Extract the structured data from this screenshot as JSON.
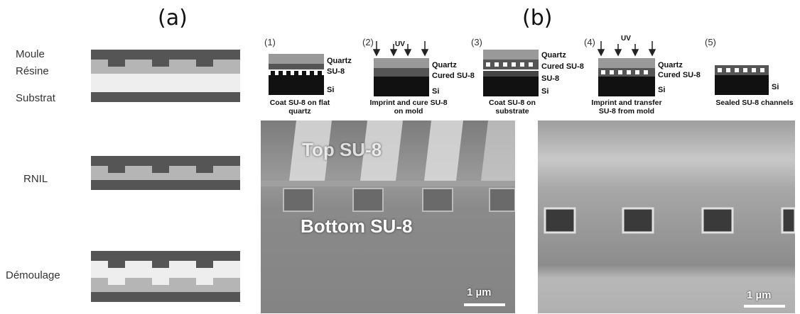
{
  "panel_labels": {
    "a": "(a)",
    "b": "(b)"
  },
  "left_labels": {
    "moule": "Moule",
    "resine": "Résine",
    "substrat": "Substrat",
    "rnil": "RNIL",
    "demoulage": "Démoulage"
  },
  "steps": [
    {
      "num": "(1)",
      "layers": [
        "Quartz",
        "SU-8",
        "Si"
      ],
      "caption": "Coat SU-8 on flat quartz"
    },
    {
      "num": "(2)",
      "uv": "UV",
      "layers": [
        "Quartz",
        "Cured SU-8",
        "Si"
      ],
      "caption": "Imprint and cure SU-8 on mold"
    },
    {
      "num": "(3)",
      "layers": [
        "Quartz",
        "Cured SU-8",
        "SU-8",
        "Si"
      ],
      "caption": "Coat SU-8 on substrate"
    },
    {
      "num": "(4)",
      "uv": "UV",
      "layers": [
        "Quartz",
        "Cured SU-8",
        "Si"
      ],
      "caption": "Imprint and transfer SU-8 from mold"
    },
    {
      "num": "(5)",
      "layers": [
        "Si"
      ],
      "caption": "Sealed SU-8 channels"
    }
  ],
  "sem_left": {
    "top_label": "Top SU-8",
    "bottom_label": "Bottom SU-8",
    "scale": "1 µm"
  },
  "sem_right": {
    "scale": "1 µm"
  },
  "colors": {
    "dark": "#555555",
    "mid": "#b5b5b5",
    "light": "#eeeeee",
    "sem_bg": "#8a8a8a"
  }
}
